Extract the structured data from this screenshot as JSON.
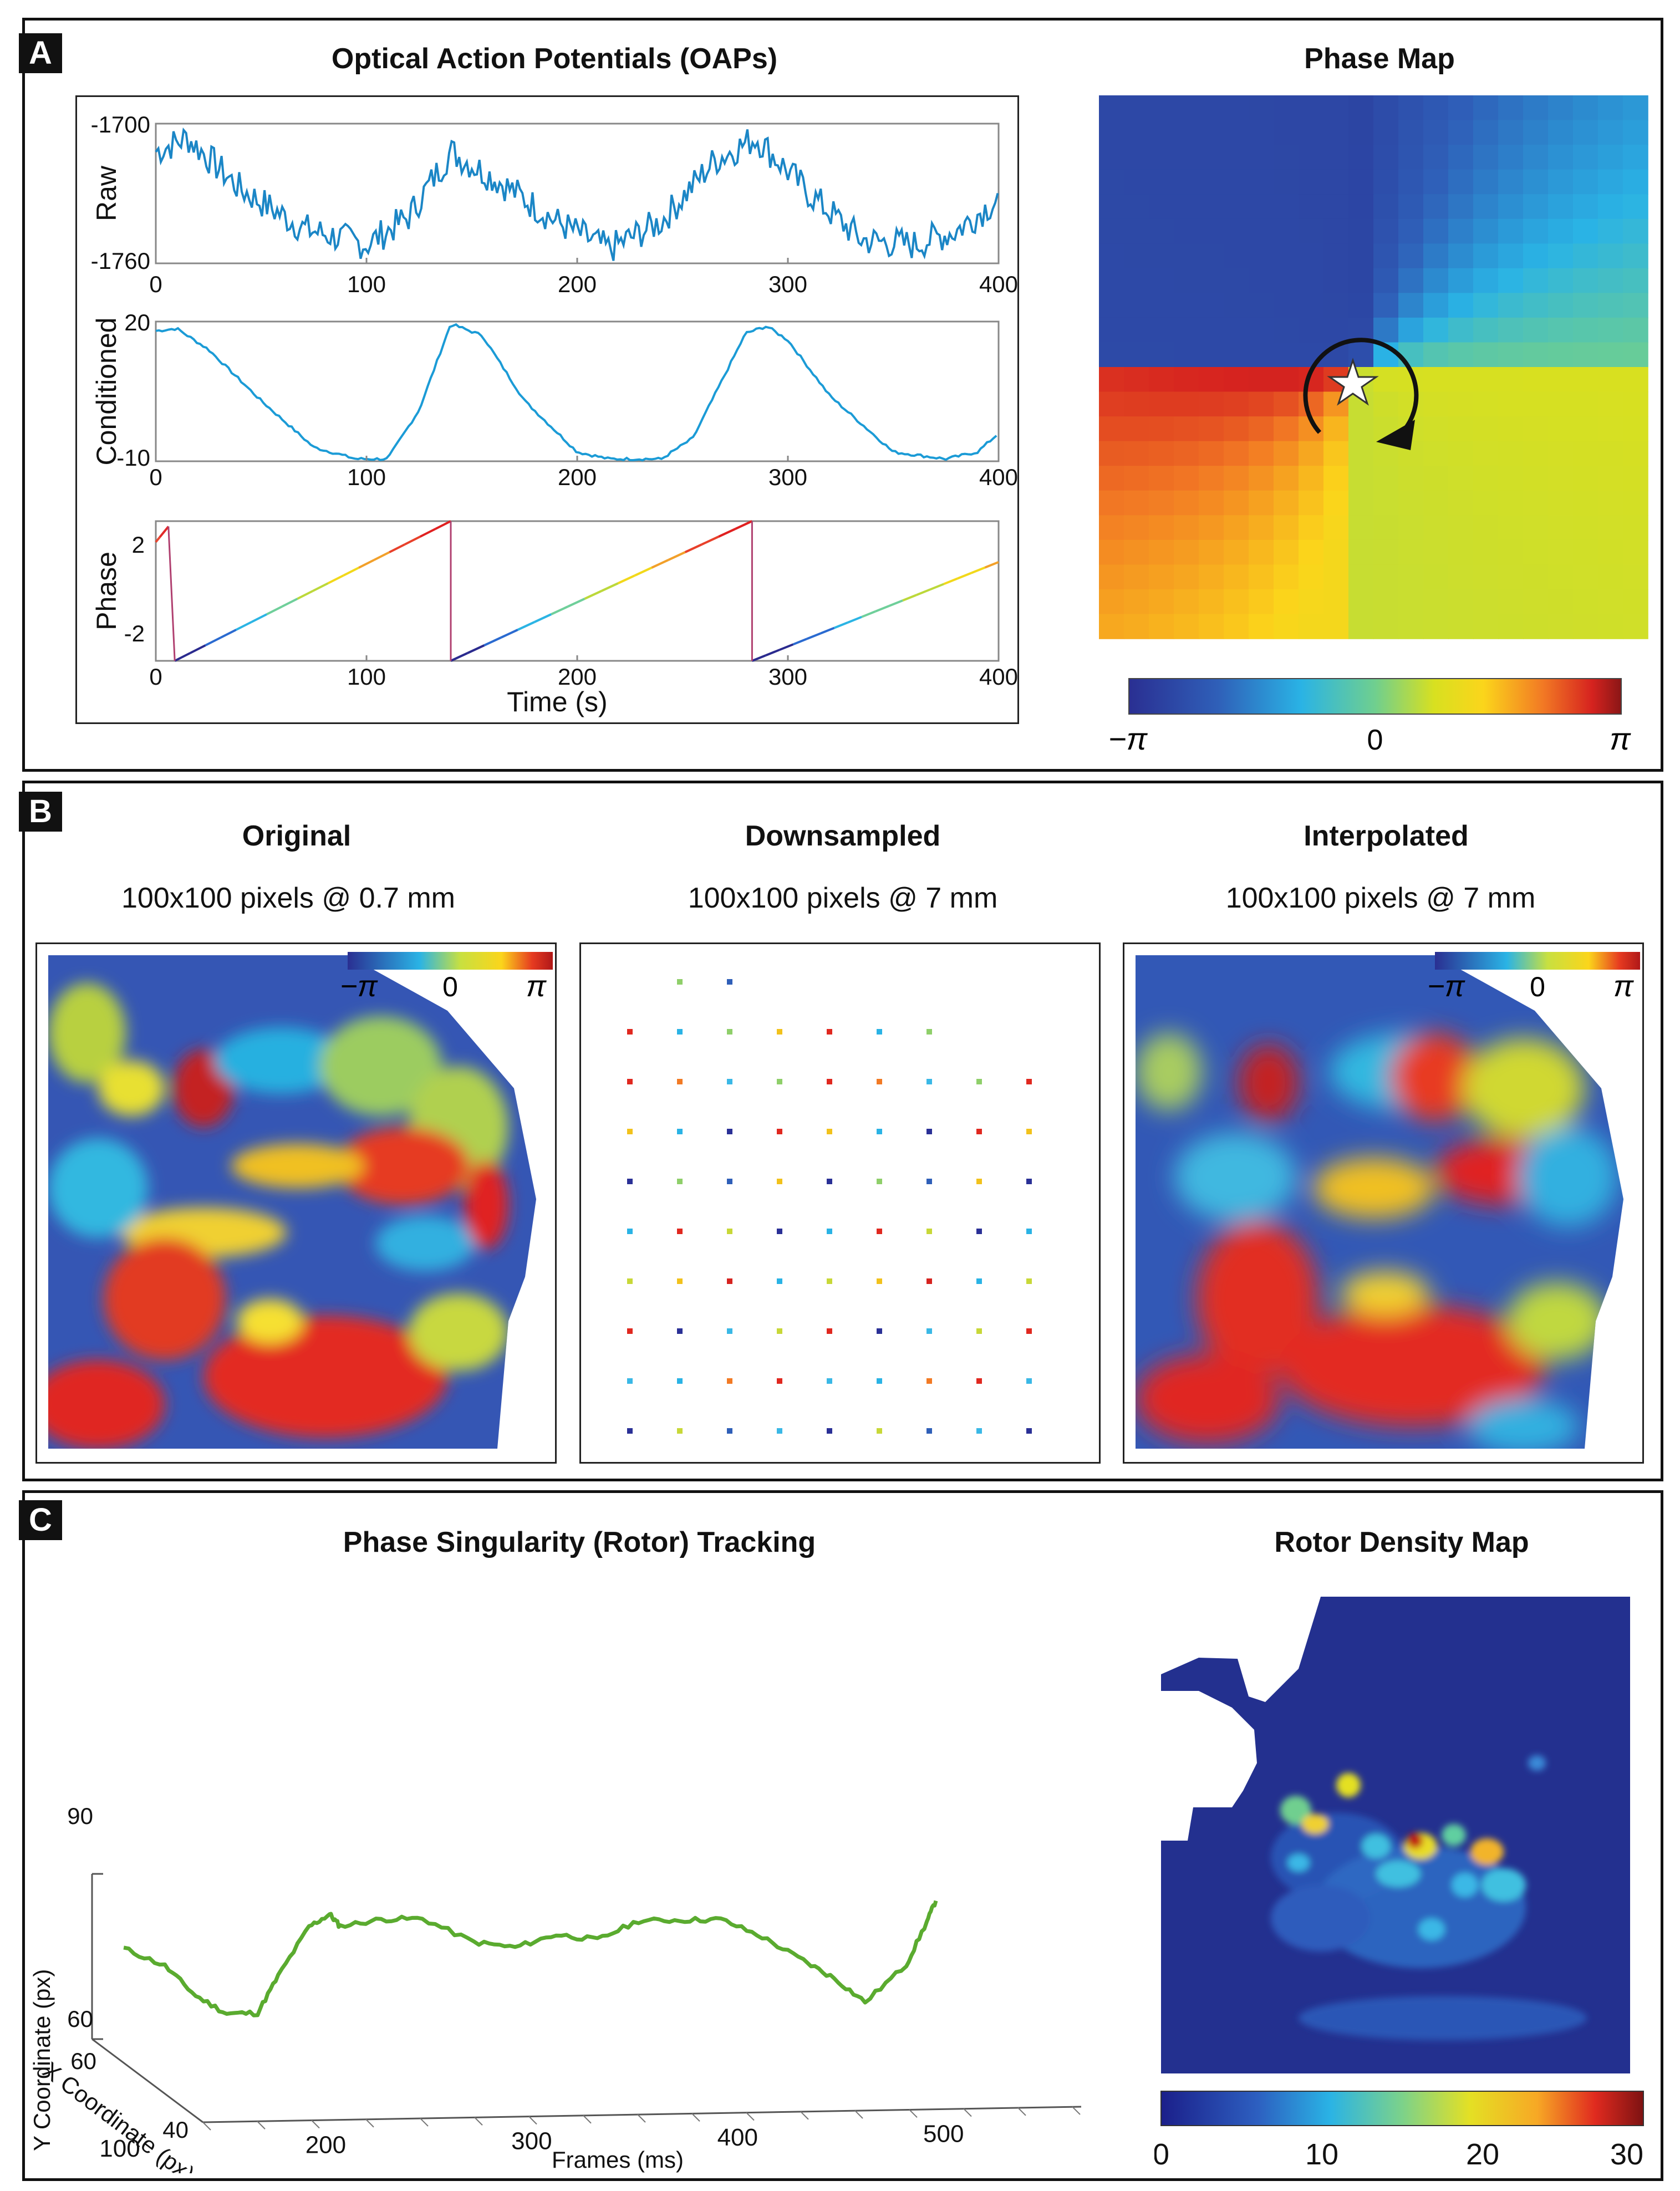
{
  "panels": {
    "a": {
      "label": "A",
      "oap_title": "Optical Action Potentials (OAPs)",
      "phase_map_title": "Phase Map",
      "colorbar_labels": [
        "−π",
        "0",
        "π"
      ]
    },
    "b": {
      "label": "B",
      "columns": [
        {
          "title": "Original",
          "subtitle": "100x100 pixels @ 0.7 mm"
        },
        {
          "title": "Downsampled",
          "subtitle": "100x100 pixels @ 7 mm"
        },
        {
          "title": "Interpolated",
          "subtitle": "100x100 pixels @ 7 mm"
        }
      ],
      "inset_colorbar_labels": [
        "−π",
        "0",
        "π"
      ]
    },
    "c": {
      "label": "C",
      "tracking_title": "Phase Singularity (Rotor) Tracking",
      "density_title": "Rotor Density Map",
      "density_colorbar_labels": [
        "0",
        "10",
        "20",
        "30"
      ]
    }
  },
  "chart_data": [
    {
      "type": "line",
      "id": "raw",
      "ylabel": "Raw",
      "xlabel": "",
      "xlim": [
        0,
        400
      ],
      "ylim": [
        -1760,
        -1700
      ],
      "xticks": [
        0,
        100,
        200,
        300,
        400
      ],
      "yticks": [
        -1700,
        -1760
      ],
      "x": [
        0,
        15,
        40,
        70,
        100,
        120,
        140,
        165,
        190,
        215,
        240,
        265,
        285,
        310,
        335,
        360,
        380,
        400
      ],
      "y": [
        -1712,
        -1706,
        -1728,
        -1745,
        -1752,
        -1740,
        -1712,
        -1726,
        -1742,
        -1754,
        -1742,
        -1716,
        -1706,
        -1730,
        -1750,
        -1752,
        -1746,
        -1732
      ],
      "color": "#1b86c6"
    },
    {
      "type": "line",
      "id": "conditioned",
      "ylabel": "Conditioned",
      "xlabel": "",
      "xlim": [
        0,
        400
      ],
      "ylim": [
        -10,
        20
      ],
      "xticks": [
        0,
        100,
        200,
        300,
        400
      ],
      "yticks": [
        20,
        -10
      ],
      "x": [
        0,
        10,
        25,
        50,
        75,
        95,
        110,
        125,
        140,
        155,
        175,
        200,
        215,
        240,
        255,
        265,
        280,
        290,
        300,
        320,
        350,
        375,
        390,
        400
      ],
      "y": [
        18,
        18.5,
        14,
        3,
        -7,
        -9.5,
        -9.5,
        1,
        19.5,
        17,
        3,
        -8,
        -9.5,
        -9.5,
        -5,
        4,
        17.5,
        19,
        16,
        4,
        -8,
        -9.5,
        -8,
        -4
      ],
      "color": "#1b9bd6"
    },
    {
      "type": "line",
      "id": "phase",
      "ylabel": "Phase",
      "xlabel": "Time (s)",
      "xlim": [
        0,
        400
      ],
      "ylim": [
        -3.14,
        3.14
      ],
      "xticks": [
        0,
        100,
        200,
        300,
        400
      ],
      "yticks": [
        2,
        -2
      ],
      "segments": [
        {
          "x": [
            0,
            6
          ],
          "y": [
            2.2,
            2.9
          ]
        },
        {
          "x": [
            9,
            140
          ],
          "y": [
            -3.14,
            3.14
          ]
        },
        {
          "x": [
            140,
            283
          ],
          "y": [
            -3.14,
            3.14
          ]
        },
        {
          "x": [
            283,
            400
          ],
          "y": [
            -3.14,
            1.3
          ]
        }
      ]
    },
    {
      "type": "line",
      "id": "rotor-trajectory",
      "title": "Phase Singularity (Rotor) Tracking",
      "xlabel": "Frames (ms)",
      "ylabel": "Y Coordinate (px)",
      "zlabel": "X Coordinate (px)",
      "xlim": [
        100,
        520
      ],
      "xticks": [
        100,
        200,
        300,
        400,
        500
      ],
      "ylim": [
        60,
        90
      ],
      "yticks": [
        60,
        90
      ],
      "zlim": [
        40,
        60
      ],
      "zticks": [
        40,
        60
      ],
      "x": [
        110,
        130,
        145,
        160,
        175,
        185,
        200,
        210,
        215,
        235,
        255,
        280,
        300,
        320,
        340,
        360,
        380,
        400,
        420,
        440,
        455,
        470,
        490,
        500,
        505
      ],
      "y": [
        73,
        70,
        65,
        62,
        62,
        68,
        76,
        78,
        76,
        77,
        77,
        73,
        72,
        74,
        73,
        76,
        76,
        76,
        73,
        69,
        66,
        62,
        68,
        75,
        79
      ],
      "color": "#5aab2f"
    },
    {
      "type": "heatmap",
      "id": "rotor-density",
      "title": "Rotor Density Map",
      "colorbar_range": [
        0,
        30
      ],
      "colorbar_ticks": [
        0,
        10,
        20,
        30
      ],
      "hotspots": [
        {
          "value": 30
        },
        {
          "value": 22
        },
        {
          "value": 20
        },
        {
          "value": 18
        },
        {
          "value": 16
        },
        {
          "value": 14
        }
      ]
    }
  ]
}
